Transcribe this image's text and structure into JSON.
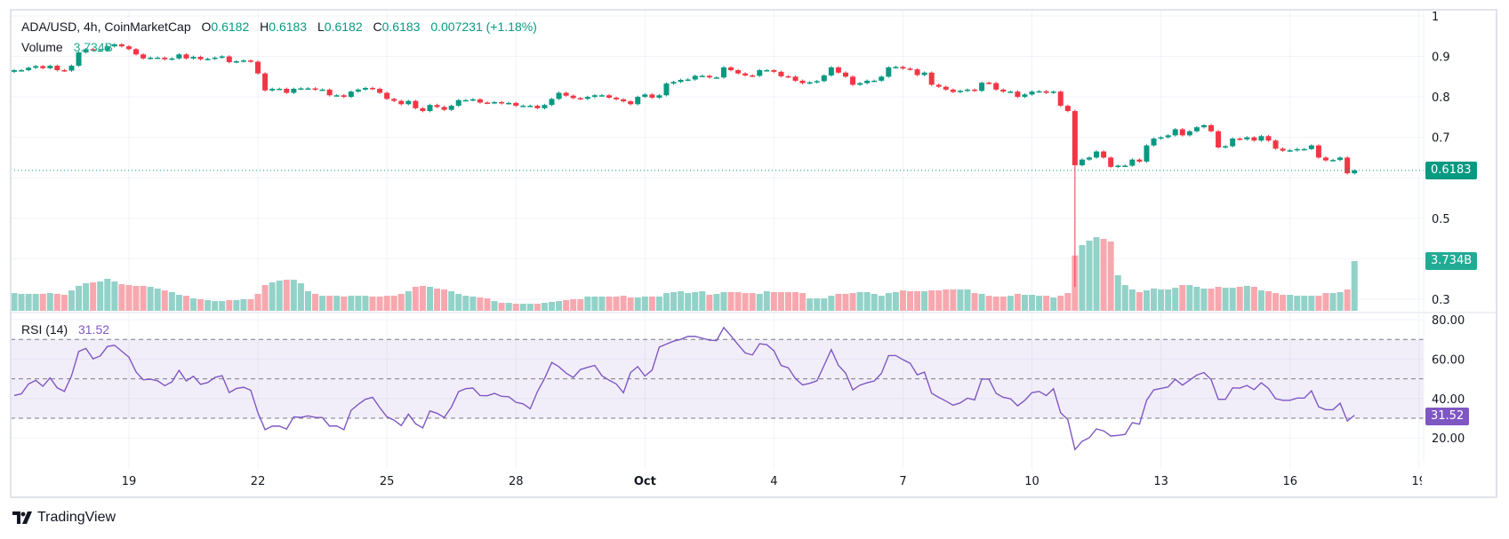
{
  "header": {
    "symbol": "ADA/USD, 4h, CoinMarketCap",
    "o_label": "O",
    "o_value": "0.6182",
    "h_label": "H",
    "h_value": "0.6183",
    "l_label": "L",
    "l_value": "0.6182",
    "c_label": "C",
    "c_value": "0.6183",
    "change": "0.007231",
    "change_pct": "(+1.18%)",
    "volume_label": "Volume",
    "volume_value": "3.734B"
  },
  "rsi_legend": {
    "label": "RSI (14)",
    "value": "31.52"
  },
  "tags": {
    "price": "0.6183",
    "volume": "3.734B",
    "rsi": "31.52"
  },
  "branding": {
    "logo_text": "TradingView"
  },
  "colors": {
    "up": "#089981",
    "down": "#f23645",
    "volume_up": "#92d2c8",
    "volume_down": "#f7a8af",
    "rsi": "#7e57c2",
    "volume_tag": "#22ab94"
  },
  "chart_data": {
    "type": "candlestick",
    "title": "ADA/USD, 4h, CoinMarketCap",
    "interval": "4h",
    "price_axis": {
      "ticks": [
        "1",
        "0.9",
        "0.8",
        "0.7",
        "0.5",
        "0.3"
      ],
      "tick_values": [
        1,
        0.9,
        0.8,
        0.7,
        0.5,
        0.3
      ],
      "ylim": [
        0.27,
        1.0
      ]
    },
    "time_axis": {
      "ticks": [
        "19",
        "22",
        "25",
        "28",
        "Oct",
        "4",
        "7",
        "10",
        "13",
        "16",
        "19"
      ],
      "tick_day_offsets": [
        0,
        3,
        6,
        9,
        12,
        15,
        18,
        21,
        24,
        27,
        30
      ]
    },
    "grid": true,
    "last_price": 0.6183,
    "close": [
      0.866,
      0.866,
      0.872,
      0.876,
      0.871,
      0.877,
      0.866,
      0.865,
      0.877,
      0.91,
      0.918,
      0.915,
      0.915,
      0.925,
      0.93,
      0.925,
      0.918,
      0.905,
      0.895,
      0.897,
      0.897,
      0.893,
      0.895,
      0.905,
      0.895,
      0.899,
      0.893,
      0.894,
      0.897,
      0.9,
      0.886,
      0.888,
      0.89,
      0.887,
      0.858,
      0.816,
      0.82,
      0.82,
      0.81,
      0.82,
      0.821,
      0.821,
      0.818,
      0.818,
      0.804,
      0.804,
      0.8,
      0.813,
      0.818,
      0.822,
      0.82,
      0.81,
      0.795,
      0.79,
      0.782,
      0.79,
      0.772,
      0.765,
      0.78,
      0.775,
      0.768,
      0.778,
      0.792,
      0.792,
      0.794,
      0.786,
      0.785,
      0.787,
      0.784,
      0.785,
      0.778,
      0.778,
      0.778,
      0.772,
      0.78,
      0.795,
      0.81,
      0.803,
      0.797,
      0.795,
      0.8,
      0.804,
      0.804,
      0.798,
      0.794,
      0.789,
      0.782,
      0.8,
      0.806,
      0.798,
      0.804,
      0.833,
      0.837,
      0.842,
      0.843,
      0.852,
      0.852,
      0.848,
      0.848,
      0.873,
      0.866,
      0.858,
      0.853,
      0.852,
      0.866,
      0.866,
      0.862,
      0.851,
      0.85,
      0.84,
      0.834,
      0.836,
      0.839,
      0.853,
      0.873,
      0.86,
      0.85,
      0.83,
      0.834,
      0.84,
      0.84,
      0.85,
      0.873,
      0.874,
      0.87,
      0.868,
      0.854,
      0.86,
      0.83,
      0.825,
      0.818,
      0.812,
      0.815,
      0.818,
      0.815,
      0.835,
      0.834,
      0.818,
      0.813,
      0.813,
      0.8,
      0.806,
      0.813,
      0.814,
      0.81,
      0.813,
      0.778,
      0.765,
      0.631,
      0.645,
      0.65,
      0.665,
      0.65,
      0.627,
      0.63,
      0.63,
      0.645,
      0.64,
      0.68,
      0.697,
      0.7,
      0.705,
      0.72,
      0.705,
      0.715,
      0.725,
      0.73,
      0.715,
      0.675,
      0.678,
      0.697,
      0.695,
      0.7,
      0.692,
      0.703,
      0.692,
      0.672,
      0.667,
      0.668,
      0.671,
      0.671,
      0.68,
      0.65,
      0.643,
      0.644,
      0.65,
      0.6111,
      0.6183
    ],
    "first_open": 0.862,
    "notable_wicks": [
      {
        "candle": 148,
        "low": 0.33
      }
    ],
    "volume_unit": "B",
    "volume": [
      1.33,
      1.27,
      1.27,
      1.27,
      1.27,
      1.33,
      1.27,
      1.2,
      1.53,
      1.87,
      2.07,
      2.13,
      2.2,
      2.4,
      2.2,
      2.0,
      1.93,
      1.87,
      1.87,
      1.8,
      1.67,
      1.53,
      1.4,
      1.2,
      1.13,
      0.93,
      0.87,
      0.8,
      0.73,
      0.73,
      0.8,
      0.8,
      0.87,
      0.87,
      1.27,
      1.93,
      2.13,
      2.27,
      2.33,
      2.33,
      2.07,
      1.47,
      1.27,
      1.13,
      1.13,
      1.13,
      1.07,
      1.13,
      1.13,
      1.13,
      1.07,
      1.07,
      1.13,
      1.13,
      1.27,
      1.47,
      1.8,
      1.87,
      1.8,
      1.67,
      1.6,
      1.47,
      1.27,
      1.13,
      1.07,
      1.0,
      0.93,
      0.73,
      0.6,
      0.6,
      0.53,
      0.53,
      0.53,
      0.53,
      0.6,
      0.67,
      0.73,
      0.8,
      0.87,
      0.87,
      1.07,
      1.07,
      1.07,
      1.07,
      1.07,
      1.13,
      1.0,
      1.0,
      1.07,
      1.07,
      1.07,
      1.33,
      1.4,
      1.47,
      1.33,
      1.4,
      1.47,
      1.2,
      1.27,
      1.4,
      1.4,
      1.4,
      1.33,
      1.33,
      1.27,
      1.47,
      1.4,
      1.4,
      1.4,
      1.4,
      1.33,
      0.93,
      0.93,
      0.93,
      1.13,
      1.27,
      1.27,
      1.33,
      1.4,
      1.4,
      1.27,
      1.13,
      1.33,
      1.4,
      1.53,
      1.47,
      1.47,
      1.47,
      1.53,
      1.53,
      1.6,
      1.6,
      1.6,
      1.6,
      1.33,
      1.27,
      1.13,
      1.07,
      1.07,
      1.13,
      1.27,
      1.2,
      1.2,
      1.13,
      1.13,
      1.0,
      1.13,
      1.33,
      4.15,
      4.93,
      5.27,
      5.53,
      5.4,
      5.2,
      2.67,
      1.93,
      1.6,
      1.4,
      1.53,
      1.67,
      1.6,
      1.6,
      1.73,
      1.93,
      1.93,
      1.8,
      1.67,
      1.67,
      1.8,
      1.73,
      1.73,
      1.8,
      1.87,
      1.8,
      1.53,
      1.47,
      1.33,
      1.2,
      1.2,
      1.13,
      1.13,
      1.13,
      1.13,
      1.33,
      1.33,
      1.4,
      1.6,
      3.734
    ],
    "rsi": {
      "name": "RSI (14)",
      "ticks": [
        "80.00",
        "60.00",
        "40.00",
        "20.00"
      ],
      "tick_values": [
        80,
        60,
        40,
        20
      ],
      "bands": [
        70,
        50,
        30
      ],
      "values": [
        41.5,
        42.4,
        47.4,
        49.2,
        46.2,
        50.5,
        45.4,
        43.6,
        51.6,
        63.9,
        65.4,
        60.1,
        61.6,
        66.4,
        67.0,
        64.0,
        61.0,
        53.5,
        49.5,
        49.8,
        49.0,
        46.5,
        48.4,
        54.3,
        48.9,
        51.3,
        47.2,
        48.1,
        50.7,
        51.6,
        43.0,
        45.1,
        45.7,
        44.2,
        32.8,
        24.2,
        26.0,
        26.0,
        24.5,
        30.7,
        30.4,
        31.2,
        30.4,
        30.3,
        26.0,
        26.1,
        24.2,
        34.0,
        37.0,
        39.6,
        40.6,
        35.4,
        30.7,
        29.0,
        26.3,
        32.1,
        27.2,
        25.1,
        33.7,
        32.5,
        30.4,
        35.7,
        43.5,
        45.0,
        45.3,
        41.5,
        41.4,
        42.6,
        41.1,
        40.9,
        38.1,
        37.3,
        34.8,
        43.5,
        50.2,
        58.3,
        56.1,
        52.9,
        50.7,
        54.7,
        55.8,
        56.8,
        51.6,
        49.3,
        47.4,
        42.9,
        53.2,
        56.2,
        51.4,
        54.4,
        66.1,
        67.6,
        69.1,
        70.0,
        71.5,
        71.5,
        70.6,
        69.6,
        69.4,
        76.0,
        71.8,
        67.3,
        63.1,
        62.1,
        67.8,
        67.3,
        64.2,
        56.8,
        55.6,
        50.1,
        46.9,
        47.7,
        49.0,
        56.8,
        64.8,
        56.8,
        52.9,
        44.4,
        46.8,
        48.0,
        48.9,
        52.8,
        61.8,
        61.8,
        59.7,
        57.9,
        52.0,
        53.4,
        42.7,
        40.6,
        38.7,
        36.6,
        37.8,
        40.2,
        39.3,
        49.9,
        49.8,
        42.6,
        40.6,
        39.9,
        36.3,
        39.1,
        43.0,
        43.6,
        41.5,
        45.0,
        32.8,
        29.3,
        14.1,
        18.3,
        20.1,
        24.6,
        23.6,
        21.0,
        21.3,
        21.8,
        27.8,
        27.0,
        39.1,
        44.4,
        45.1,
        45.9,
        49.8,
        46.8,
        49.3,
        51.9,
        53.2,
        49.6,
        39.6,
        39.6,
        45.4,
        45.3,
        46.6,
        44.5,
        48.0,
        45.1,
        39.9,
        39.1,
        39.1,
        40.2,
        40.2,
        43.9,
        35.8,
        34.3,
        34.3,
        37.6,
        28.6,
        31.52
      ]
    }
  }
}
